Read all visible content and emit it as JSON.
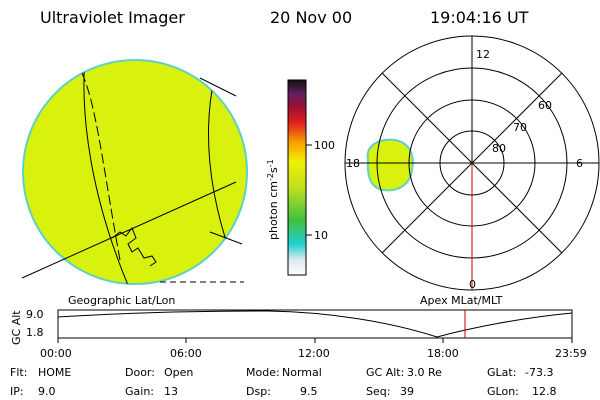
{
  "header": {
    "instrument": "Ultraviolet Imager",
    "date": "20 Nov 00",
    "time": "19:04:16 UT"
  },
  "colorbar": {
    "label": "photon cm",
    "label_sup1": "-2",
    "label_mid": "s",
    "label_sup2": "-1",
    "tick_100": "100",
    "tick_10": "10"
  },
  "geo_panel": {
    "caption": "Geographic Lat/Lon",
    "fill_color": "#d9f20d",
    "edge_color": "#5fd0c8"
  },
  "polar_panel": {
    "caption": "Apex MLat/MLT",
    "mlt_labels": {
      "top": "12",
      "left": "18",
      "right": "6",
      "bottom": "0"
    },
    "mlat_labels": [
      "60",
      "70",
      "80"
    ]
  },
  "altitude_strip": {
    "axis_label": "GC Alt",
    "y_max": "9.0",
    "y_min": "1.8",
    "time_ticks": [
      "00:00",
      "06:00",
      "12:00",
      "18:00",
      "23:59"
    ],
    "marker_color": "#cc0000"
  },
  "status": {
    "row1": [
      {
        "key": "Flt:",
        "value": "HOME"
      },
      {
        "key": "Door:",
        "value": "Open"
      },
      {
        "key": "Mode:",
        "value": "Normal"
      },
      {
        "key": "GC Alt:",
        "value": "3.0 Re"
      },
      {
        "key": "GLat:",
        "value": "-73.3"
      }
    ],
    "row2": [
      {
        "key": "IP:",
        "value": "9.0"
      },
      {
        "key": "Gain:",
        "value": "13"
      },
      {
        "key": "Dsp:",
        "value": "9.5"
      },
      {
        "key": "Seq:",
        "value": "39"
      },
      {
        "key": "GLon:",
        "value": "12.8"
      }
    ]
  }
}
